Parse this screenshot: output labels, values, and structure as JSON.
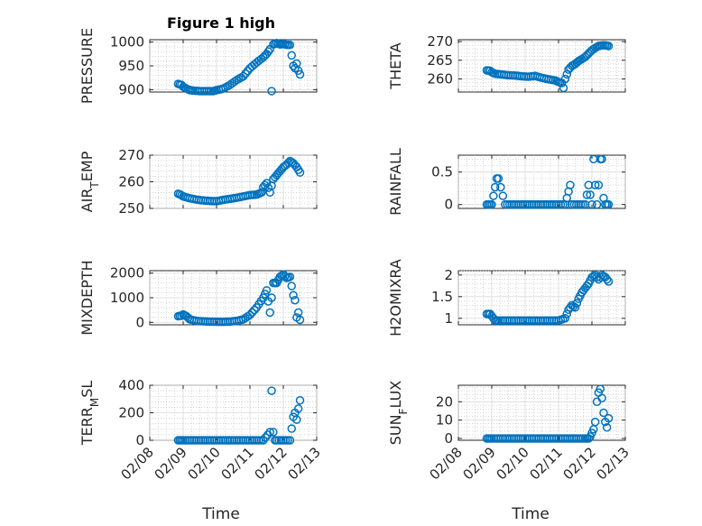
{
  "figure": {
    "title": "Figure 1 high",
    "marker_color": "#0072BD",
    "xlabel": "Time",
    "x_ticks": [
      "02/08",
      "02/09",
      "02/10",
      "02/11",
      "02/12",
      "02/13"
    ],
    "x_range": [
      "02/08",
      "02/13"
    ]
  },
  "chart_data": [
    {
      "type": "scatter",
      "ylabel": "PRESSURE",
      "ylim": [
        895,
        1005
      ],
      "yticks": [
        900,
        950,
        1000
      ],
      "grid": true,
      "x": [
        8.85,
        8.9,
        8.95,
        9.0,
        9.1,
        9.2,
        9.3,
        9.5,
        9.7,
        9.9,
        10.0,
        10.2,
        10.4,
        10.6,
        10.8,
        11.0,
        11.2,
        11.4,
        11.5,
        11.6,
        11.65,
        11.7,
        11.8,
        11.9,
        12.0,
        12.1,
        12.2,
        12.3,
        12.35,
        12.4,
        12.45,
        12.5
      ],
      "values": [
        912,
        911,
        910,
        906,
        902,
        899,
        898,
        897,
        897,
        897,
        899,
        902,
        910,
        920,
        928,
        945,
        957,
        968,
        975,
        985,
        897,
        995,
        998,
        995,
        996,
        994,
        994,
        950,
        945,
        955,
        940,
        932
      ]
    },
    {
      "type": "scatter",
      "ylabel": "THETA",
      "ylim": [
        256.5,
        270.5
      ],
      "yticks": [
        260,
        265,
        270
      ],
      "grid": true,
      "x": [
        8.85,
        8.95,
        9.0,
        9.1,
        9.3,
        9.5,
        9.7,
        9.9,
        10.1,
        10.3,
        10.5,
        10.7,
        10.9,
        11.0,
        11.1,
        11.15,
        11.2,
        11.3,
        11.4,
        11.5,
        11.6,
        11.7,
        11.8,
        11.9,
        12.0,
        12.1,
        12.2,
        12.3,
        12.4,
        12.5
      ],
      "values": [
        262.3,
        262.2,
        261.8,
        261.4,
        261.2,
        261.0,
        260.9,
        260.7,
        260.6,
        260.8,
        260.3,
        259.9,
        259.6,
        259.2,
        258.9,
        257.6,
        260.0,
        262.5,
        263.5,
        264.0,
        264.8,
        265.3,
        265.9,
        266.8,
        267.7,
        268.3,
        268.8,
        269.0,
        269.0,
        268.8
      ]
    },
    {
      "type": "scatter",
      "ylabel": "AIR_TEMP",
      "ylim": [
        250,
        270
      ],
      "yticks": [
        250,
        260,
        270
      ],
      "grid": true,
      "x": [
        8.85,
        8.9,
        9.0,
        9.2,
        9.4,
        9.6,
        9.8,
        10.0,
        10.2,
        10.4,
        10.6,
        10.8,
        11.0,
        11.2,
        11.35,
        11.4,
        11.5,
        11.6,
        11.7,
        11.8,
        11.9,
        12.0,
        12.1,
        12.2,
        12.3,
        12.4,
        12.45,
        12.5
      ],
      "values": [
        255.5,
        255.3,
        254.5,
        253.8,
        253.3,
        253.0,
        252.8,
        252.7,
        253.2,
        253.6,
        254.0,
        254.5,
        255.0,
        255.2,
        256.0,
        258.0,
        259.5,
        256.0,
        261.0,
        262.5,
        264.0,
        265.5,
        266.5,
        267.8,
        267.0,
        265.5,
        264.5,
        263.5
      ]
    },
    {
      "type": "scatter",
      "ylabel": "RAINFALL",
      "ylim": [
        -0.06,
        0.76
      ],
      "yticks": [
        0,
        0.5
      ],
      "grid": true,
      "x": [
        8.85,
        9.0,
        9.15,
        9.2,
        9.4,
        9.6,
        9.8,
        10.0,
        10.2,
        10.4,
        10.6,
        10.8,
        11.0,
        11.2,
        11.35,
        11.4,
        11.6,
        11.8,
        11.9,
        12.0,
        12.05,
        12.1,
        12.15,
        12.2,
        12.25,
        12.3,
        12.35,
        12.4,
        12.45,
        12.5
      ],
      "values": [
        0,
        0,
        0.4,
        0.4,
        0,
        0,
        0,
        0,
        0,
        0,
        0,
        0,
        0,
        0,
        0.3,
        0,
        0,
        0,
        0.3,
        0,
        0.7,
        0.3,
        0,
        0.3,
        0.7,
        0.7,
        0.1,
        0,
        0,
        0
      ]
    },
    {
      "type": "scatter",
      "ylabel": "MIXDEPTH",
      "ylim": [
        -100,
        2100
      ],
      "yticks": [
        0,
        1000,
        2000
      ],
      "grid": true,
      "x": [
        8.85,
        8.95,
        9.0,
        9.1,
        9.2,
        9.4,
        9.6,
        9.8,
        10.0,
        10.2,
        10.4,
        10.6,
        10.8,
        11.0,
        11.2,
        11.4,
        11.5,
        11.6,
        11.7,
        11.8,
        11.9,
        12.0,
        12.1,
        12.2,
        12.3,
        12.35,
        12.4,
        12.45,
        12.5
      ],
      "values": [
        250,
        270,
        320,
        250,
        120,
        60,
        40,
        30,
        25,
        20,
        30,
        60,
        120,
        300,
        600,
        1000,
        1300,
        400,
        1600,
        1600,
        1850,
        1950,
        1800,
        1850,
        1100,
        900,
        200,
        400,
        100
      ]
    },
    {
      "type": "scatter",
      "ylabel": "H2OMIXRA",
      "ylim": [
        0.85,
        2.1
      ],
      "yticks": [
        1,
        1.5,
        2
      ],
      "grid": true,
      "x": [
        8.85,
        8.95,
        9.0,
        9.1,
        9.2,
        9.4,
        9.6,
        9.8,
        10.0,
        10.2,
        10.4,
        10.6,
        10.8,
        11.0,
        11.2,
        11.3,
        11.4,
        11.5,
        11.6,
        11.7,
        11.8,
        11.9,
        12.0,
        12.1,
        12.2,
        12.3,
        12.4,
        12.5
      ],
      "values": [
        1.1,
        1.1,
        1.05,
        0.95,
        0.95,
        0.95,
        0.95,
        0.95,
        0.95,
        0.95,
        0.95,
        0.95,
        0.95,
        0.95,
        1.0,
        1.2,
        1.3,
        1.25,
        1.45,
        1.6,
        1.7,
        1.8,
        1.95,
        2.0,
        1.9,
        2.0,
        1.95,
        1.85
      ]
    },
    {
      "type": "scatter",
      "ylabel": "TERR_MSL",
      "ylim": [
        0,
        400
      ],
      "yticks": [
        0,
        200,
        400
      ],
      "grid": true,
      "x": [
        8.85,
        9.0,
        9.2,
        9.4,
        9.6,
        9.8,
        10.0,
        10.2,
        10.4,
        10.6,
        10.8,
        11.0,
        11.2,
        11.4,
        11.6,
        11.65,
        11.7,
        11.75,
        11.8,
        12.0,
        12.2,
        12.3,
        12.35,
        12.4,
        12.45,
        12.5
      ],
      "values": [
        0,
        0,
        0,
        0,
        0,
        0,
        0,
        0,
        0,
        0,
        0,
        0,
        0,
        0,
        60,
        360,
        60,
        0,
        0,
        0,
        0,
        170,
        200,
        150,
        230,
        290
      ]
    },
    {
      "type": "scatter",
      "ylabel": "SUN_FLUX",
      "ylim": [
        -1,
        29
      ],
      "yticks": [
        0,
        10,
        20
      ],
      "grid": true,
      "x": [
        8.85,
        9.0,
        9.2,
        9.4,
        9.6,
        9.8,
        10.0,
        10.2,
        10.4,
        10.6,
        10.8,
        11.0,
        11.2,
        11.4,
        11.6,
        11.8,
        11.9,
        11.95,
        12.0,
        12.05,
        12.1,
        12.15,
        12.2,
        12.25,
        12.3,
        12.35,
        12.4,
        12.45,
        12.5
      ],
      "values": [
        0,
        0,
        0,
        0,
        0,
        0,
        0,
        0,
        0,
        0,
        0,
        0,
        0,
        0,
        0,
        0,
        0,
        1,
        3,
        5,
        9,
        20,
        25,
        27,
        22,
        14,
        9,
        6,
        11
      ]
    }
  ]
}
